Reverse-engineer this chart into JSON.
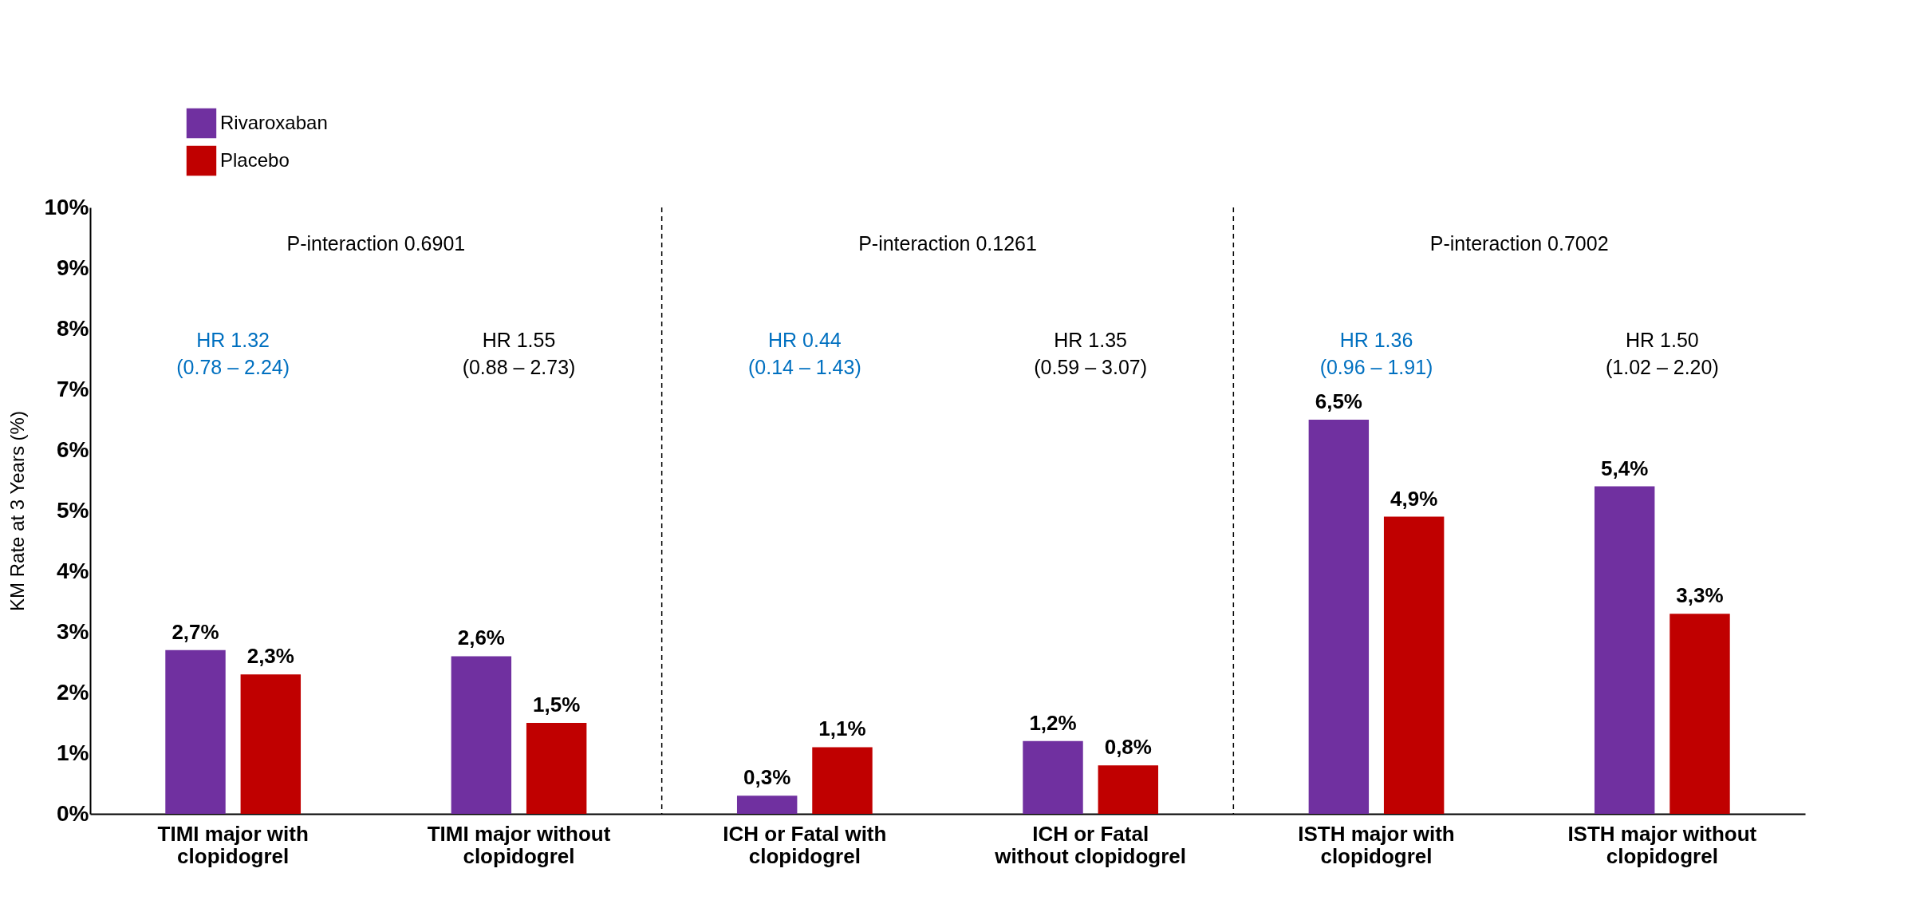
{
  "chart_data": {
    "type": "bar",
    "ylabel": "KM Rate at 3 Years (%)",
    "categories": [
      "TIMI major with clopidogrel",
      "TIMI major without clopidogrel",
      "ICH or Fatal with clopidogrel",
      "ICH or Fatal without clopidogrel",
      "ISTH major with clopidogrel",
      "ISTH major without clopidogrel"
    ],
    "series": [
      {
        "name": "Rivaroxaban",
        "color": "#7030a0",
        "values": [
          2.7,
          2.6,
          0.3,
          1.2,
          6.5,
          5.4
        ],
        "value_labels": [
          "2,7%",
          "2,6%",
          "0,3%",
          "1,2%",
          "6,5%",
          "5,4%"
        ]
      },
      {
        "name": "Placebo",
        "color": "#c00000",
        "values": [
          2.3,
          1.5,
          1.1,
          0.8,
          4.9,
          3.3
        ],
        "value_labels": [
          "2,3%",
          "1,5%",
          "1,1%",
          "0,8%",
          "4,9%",
          "3,3%"
        ]
      }
    ],
    "ylim": [
      0,
      10
    ],
    "yticks": [
      {
        "value": 0,
        "label": "0%"
      },
      {
        "value": 1,
        "label": "1%"
      },
      {
        "value": 2,
        "label": "2%"
      },
      {
        "value": 3,
        "label": "3%"
      },
      {
        "value": 4,
        "label": "4%"
      },
      {
        "value": 5,
        "label": "5%"
      },
      {
        "value": 6,
        "label": "6%"
      },
      {
        "value": 7,
        "label": "7%"
      },
      {
        "value": 8,
        "label": "8%"
      },
      {
        "value": 9,
        "label": "9%"
      },
      {
        "value": 10,
        "label": "10%"
      }
    ],
    "grid": false,
    "legend": "top left",
    "annotations": [
      "P-interaction 0.6901",
      "P-interaction 0.1261",
      "P-interaction 0.7002",
      "HR 1.32\n(0.78 – 2.24)",
      "HR 1.55\n(0.88 – 2.73)",
      "HR 0.44\n(0.14 – 1.43)",
      "HR 1.35\n(0.59 – 3.07)",
      "HR 1.36\n(0.96 – 1.91)",
      "HR 1.50\n(1.02 – 2.20)"
    ]
  }
}
